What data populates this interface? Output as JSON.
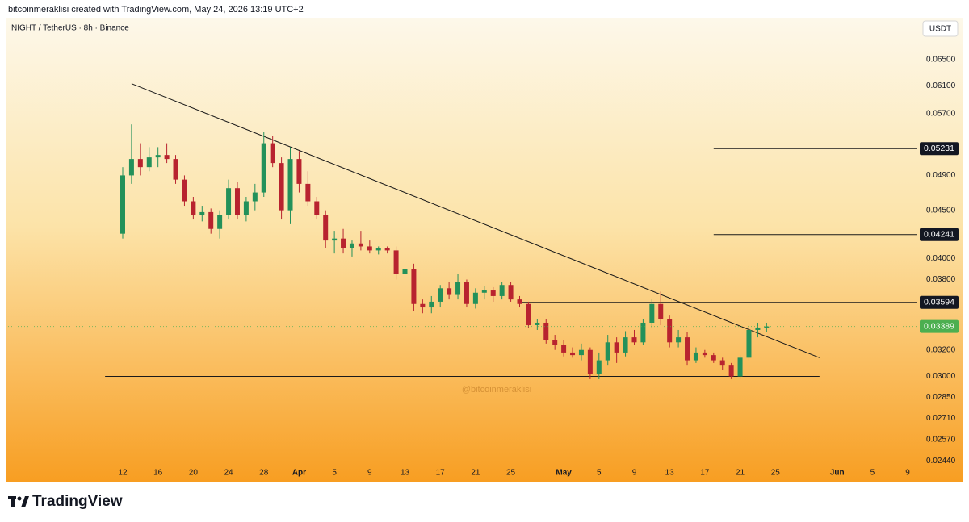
{
  "chart_data": {
    "type": "candlestick",
    "attribution": "bitcoinmeraklisi created with TradingView.com, May 24, 2026 13:19 UTC+2",
    "symbol": "NIGHT / TetherUS · 8h · Binance",
    "currency": "USDT",
    "watermark": "@bitcoinmeraklisi",
    "brand": "TradingView",
    "log_scale": true,
    "up_color": "#23915a",
    "down_color": "#b8232f",
    "x": [
      "Mar 12",
      "Mar 13",
      "Mar 14",
      "Mar 15",
      "Mar 16",
      "Mar 17",
      "Mar 18",
      "Mar 19",
      "Mar 20",
      "Mar 21",
      "Mar 22",
      "Mar 23",
      "Mar 24",
      "Mar 25",
      "Mar 26",
      "Mar 27",
      "Mar 28",
      "Mar 29",
      "Mar 30",
      "Mar 31",
      "Apr 1",
      "Apr 2",
      "Apr 3",
      "Apr 4",
      "Apr 5",
      "Apr 6",
      "Apr 7",
      "Apr 8",
      "Apr 9",
      "Apr 10",
      "Apr 11",
      "Apr 12",
      "Apr 13",
      "Apr 14",
      "Apr 15",
      "Apr 16",
      "Apr 17",
      "Apr 18",
      "Apr 19",
      "Apr 20",
      "Apr 21",
      "Apr 22",
      "Apr 23",
      "Apr 24",
      "Apr 25",
      "Apr 26",
      "Apr 27",
      "Apr 28",
      "Apr 29",
      "Apr 30",
      "May 1",
      "May 2",
      "May 3",
      "May 4",
      "May 5",
      "May 6",
      "May 7",
      "May 8",
      "May 9",
      "May 10",
      "May 11",
      "May 12",
      "May 13",
      "May 14",
      "May 15",
      "May 16",
      "May 17",
      "May 18",
      "May 19",
      "May 20",
      "May 21",
      "May 22",
      "May 23",
      "May 24"
    ],
    "open": [
      0.0425,
      0.049,
      0.051,
      0.05,
      0.0512,
      0.0515,
      0.051,
      0.0485,
      0.046,
      0.0445,
      0.0448,
      0.043,
      0.0445,
      0.0475,
      0.0445,
      0.046,
      0.047,
      0.053,
      0.0505,
      0.045,
      0.051,
      0.048,
      0.046,
      0.0445,
      0.0418,
      0.042,
      0.041,
      0.0415,
      0.0412,
      0.0408,
      0.041,
      0.0408,
      0.0385,
      0.039,
      0.0358,
      0.0355,
      0.036,
      0.0372,
      0.0366,
      0.0378,
      0.0358,
      0.0368,
      0.037,
      0.0365,
      0.0375,
      0.0362,
      0.0358,
      0.034,
      0.0342,
      0.0328,
      0.0324,
      0.0318,
      0.0316,
      0.032,
      0.0302,
      0.0312,
      0.0326,
      0.0318,
      0.033,
      0.0326,
      0.0342,
      0.0358,
      0.0345,
      0.0326,
      0.033,
      0.0312,
      0.0318,
      0.0316,
      0.0312,
      0.0308,
      0.03,
      0.0314,
      0.0336,
      0.0338
    ],
    "high": [
      0.05,
      0.0555,
      0.053,
      0.0525,
      0.0525,
      0.053,
      0.0515,
      0.049,
      0.0465,
      0.0455,
      0.0452,
      0.045,
      0.0485,
      0.0482,
      0.0465,
      0.048,
      0.0545,
      0.054,
      0.0512,
      0.0525,
      0.052,
      0.0495,
      0.0465,
      0.045,
      0.0428,
      0.043,
      0.0418,
      0.0428,
      0.0418,
      0.0412,
      0.0412,
      0.0412,
      0.047,
      0.0395,
      0.0362,
      0.0365,
      0.0375,
      0.0378,
      0.0385,
      0.038,
      0.0372,
      0.0374,
      0.0373,
      0.0378,
      0.0378,
      0.0365,
      0.036,
      0.0345,
      0.0345,
      0.0332,
      0.0328,
      0.0322,
      0.0325,
      0.0322,
      0.0318,
      0.0332,
      0.033,
      0.0335,
      0.0336,
      0.0345,
      0.0362,
      0.0369,
      0.0348,
      0.0336,
      0.0334,
      0.0322,
      0.032,
      0.0318,
      0.0314,
      0.031,
      0.0316,
      0.034,
      0.0342,
      0.0342
    ],
    "low": [
      0.042,
      0.048,
      0.049,
      0.0495,
      0.05,
      0.0505,
      0.048,
      0.0455,
      0.044,
      0.0438,
      0.0425,
      0.042,
      0.044,
      0.044,
      0.0438,
      0.045,
      0.0465,
      0.05,
      0.044,
      0.0435,
      0.047,
      0.0455,
      0.044,
      0.041,
      0.0405,
      0.0405,
      0.0402,
      0.0408,
      0.0405,
      0.0404,
      0.0405,
      0.038,
      0.0378,
      0.0352,
      0.035,
      0.035,
      0.0355,
      0.0362,
      0.0362,
      0.0355,
      0.0354,
      0.0362,
      0.036,
      0.0362,
      0.036,
      0.0355,
      0.0338,
      0.0336,
      0.0325,
      0.032,
      0.0315,
      0.0314,
      0.0312,
      0.0298,
      0.0298,
      0.0308,
      0.031,
      0.0315,
      0.0324,
      0.0324,
      0.0338,
      0.034,
      0.0322,
      0.0322,
      0.0308,
      0.031,
      0.0314,
      0.031,
      0.0305,
      0.0298,
      0.0298,
      0.0312,
      0.033,
      0.0334
    ],
    "close": [
      0.049,
      0.051,
      0.05,
      0.0512,
      0.0515,
      0.051,
      0.0485,
      0.046,
      0.0445,
      0.0448,
      0.043,
      0.0445,
      0.0475,
      0.0445,
      0.046,
      0.047,
      0.053,
      0.0505,
      0.045,
      0.051,
      0.048,
      0.046,
      0.0445,
      0.0418,
      0.042,
      0.041,
      0.0415,
      0.0412,
      0.0408,
      0.041,
      0.0408,
      0.0385,
      0.039,
      0.0358,
      0.0355,
      0.036,
      0.0372,
      0.0366,
      0.0378,
      0.0358,
      0.0368,
      0.037,
      0.0365,
      0.0375,
      0.0362,
      0.0358,
      0.034,
      0.0342,
      0.0328,
      0.0324,
      0.0318,
      0.0316,
      0.032,
      0.0302,
      0.0312,
      0.0326,
      0.0318,
      0.033,
      0.0326,
      0.0342,
      0.0358,
      0.0345,
      0.0326,
      0.033,
      0.0312,
      0.0318,
      0.0316,
      0.0312,
      0.0308,
      0.03,
      0.0314,
      0.0336,
      0.0338,
      0.03389
    ],
    "xlim": [
      "Feb 27",
      "Jun 10"
    ],
    "xticks": [
      {
        "value": "Mar 12",
        "label": "12"
      },
      {
        "value": "Mar 16",
        "label": "16"
      },
      {
        "value": "Mar 20",
        "label": "20"
      },
      {
        "value": "Mar 24",
        "label": "24"
      },
      {
        "value": "Mar 28",
        "label": "28"
      },
      {
        "value": "Apr 1",
        "label": "Apr"
      },
      {
        "value": "Apr 5",
        "label": "5"
      },
      {
        "value": "Apr 9",
        "label": "9"
      },
      {
        "value": "Apr 13",
        "label": "13"
      },
      {
        "value": "Apr 17",
        "label": "17"
      },
      {
        "value": "Apr 21",
        "label": "21"
      },
      {
        "value": "Apr 25",
        "label": "25"
      },
      {
        "value": "May 1",
        "label": "May"
      },
      {
        "value": "May 5",
        "label": "5"
      },
      {
        "value": "May 9",
        "label": "9"
      },
      {
        "value": "May 13",
        "label": "13"
      },
      {
        "value": "May 17",
        "label": "17"
      },
      {
        "value": "May 21",
        "label": "21"
      },
      {
        "value": "May 25",
        "label": "25"
      },
      {
        "value": "Jun 1",
        "label": "Jun"
      },
      {
        "value": "Jun 5",
        "label": "5"
      },
      {
        "value": "Jun 9",
        "label": "9"
      }
    ],
    "ylim": [
      0.0232,
      0.0713
    ],
    "yticks": [
      {
        "value": 0.065,
        "label": "0.06500"
      },
      {
        "value": 0.061,
        "label": "0.06100"
      },
      {
        "value": 0.057,
        "label": "0.05700"
      },
      {
        "value": 0.049,
        "label": "0.04900"
      },
      {
        "value": 0.045,
        "label": "0.04500"
      },
      {
        "value": 0.04,
        "label": "0.04000"
      },
      {
        "value": 0.038,
        "label": "0.03800"
      },
      {
        "value": 0.032,
        "label": "0.03200"
      },
      {
        "value": 0.03,
        "label": "0.03000"
      },
      {
        "value": 0.0285,
        "label": "0.02850"
      },
      {
        "value": 0.0271,
        "label": "0.02710"
      },
      {
        "value": 0.0257,
        "label": "0.02570"
      },
      {
        "value": 0.0244,
        "label": "0.02440"
      }
    ],
    "levels": [
      {
        "price": 0.05231,
        "start": "May 18"
      },
      {
        "price": 0.04241,
        "start": "May 18"
      },
      {
        "price": 0.03594,
        "start": "Apr 26"
      }
    ],
    "support": {
      "price": 0.03,
      "start": "Mar 10",
      "end": "May 30"
    },
    "trendline": {
      "dates": [
        "Mar 13",
        "May 30"
      ],
      "prices": [
        0.0613,
        0.0314
      ]
    }
  }
}
